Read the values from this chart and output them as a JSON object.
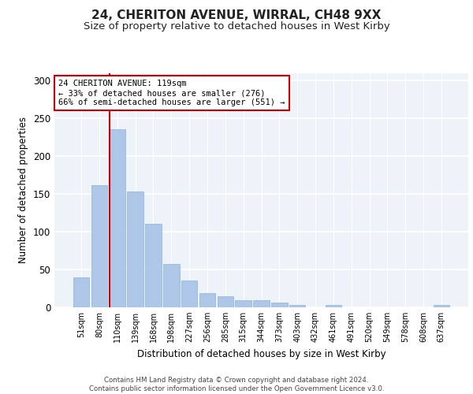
{
  "title1": "24, CHERITON AVENUE, WIRRAL, CH48 9XX",
  "title2": "Size of property relative to detached houses in West Kirby",
  "xlabel": "Distribution of detached houses by size in West Kirby",
  "ylabel": "Number of detached properties",
  "categories": [
    "51sqm",
    "80sqm",
    "110sqm",
    "139sqm",
    "168sqm",
    "198sqm",
    "227sqm",
    "256sqm",
    "285sqm",
    "315sqm",
    "344sqm",
    "373sqm",
    "403sqm",
    "432sqm",
    "461sqm",
    "491sqm",
    "520sqm",
    "549sqm",
    "578sqm",
    "608sqm",
    "637sqm"
  ],
  "values": [
    40,
    161,
    236,
    153,
    110,
    57,
    35,
    19,
    15,
    9,
    9,
    6,
    3,
    0,
    3,
    0,
    0,
    0,
    0,
    0,
    3
  ],
  "bar_color": "#aec6e8",
  "bar_edge_color": "#8ab4d8",
  "vline_color": "#cc0000",
  "annotation_text": "24 CHERITON AVENUE: 119sqm\n← 33% of detached houses are smaller (276)\n66% of semi-detached houses are larger (551) →",
  "annotation_box_color": "#ffffff",
  "annotation_box_edge": "#cc0000",
  "ylim": [
    0,
    310
  ],
  "yticks": [
    0,
    50,
    100,
    150,
    200,
    250,
    300
  ],
  "footer_text": "Contains HM Land Registry data © Crown copyright and database right 2024.\nContains public sector information licensed under the Open Government Licence v3.0.",
  "bg_color": "#eef2f9",
  "grid_color": "#ffffff",
  "title1_fontsize": 11,
  "title2_fontsize": 9.5
}
